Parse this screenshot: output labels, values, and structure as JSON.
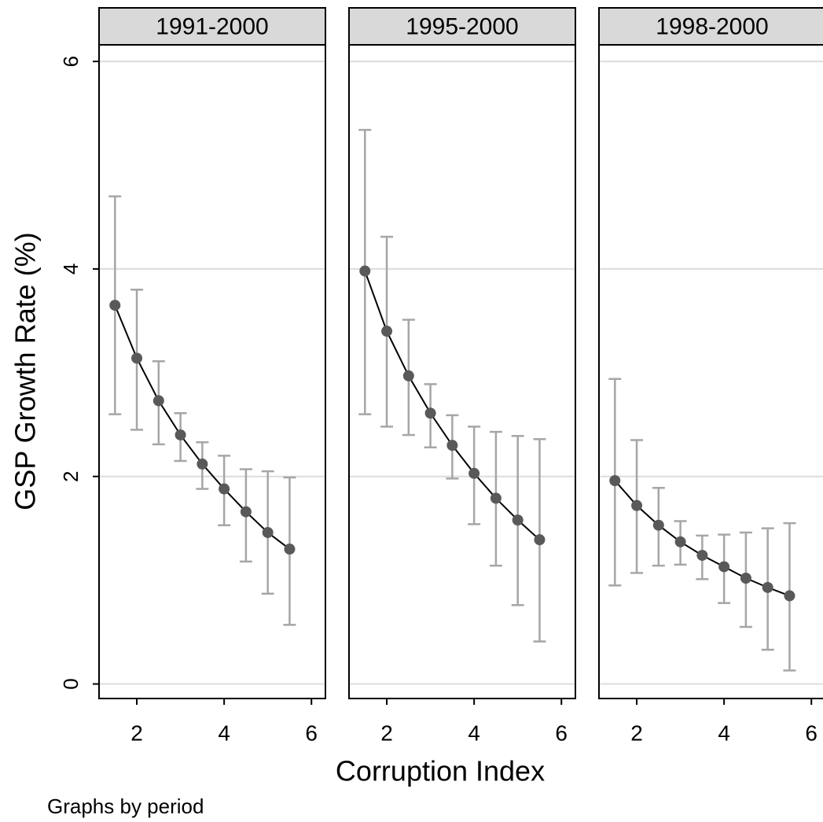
{
  "chart_data": [
    {
      "type": "line",
      "title": "1991-2000",
      "ylabel": "GSP Growth Rate (%)",
      "x": [
        1.5,
        2,
        2.5,
        3,
        3.5,
        4,
        4.5,
        5,
        5.5
      ],
      "values": [
        3.65,
        3.14,
        2.73,
        2.4,
        2.12,
        1.88,
        1.66,
        1.46,
        1.3
      ],
      "lower": [
        2.6,
        2.45,
        2.31,
        2.15,
        1.88,
        1.53,
        1.18,
        0.87,
        0.57
      ],
      "upper": [
        4.7,
        3.8,
        3.11,
        2.61,
        2.33,
        2.2,
        2.07,
        2.05,
        1.99
      ],
      "xlim": [
        1.135,
        6.32
      ],
      "xticks": [
        2,
        4,
        6
      ],
      "ylim": [
        -0.14,
        6.16
      ],
      "yticks": [
        0,
        2,
        4,
        6
      ],
      "grid": true,
      "line_color": "#000000",
      "marker_color": "#595959",
      "error_color": "#a6a6a6"
    },
    {
      "type": "line",
      "title": "1995-2000",
      "xlabel": "Corruption Index",
      "x": [
        1.5,
        2,
        2.5,
        3,
        3.5,
        4,
        4.5,
        5,
        5.5
      ],
      "values": [
        3.98,
        3.4,
        2.97,
        2.61,
        2.3,
        2.03,
        1.79,
        1.58,
        1.39
      ],
      "lower": [
        2.6,
        2.48,
        2.4,
        2.28,
        1.98,
        1.54,
        1.14,
        0.76,
        0.41
      ],
      "upper": [
        5.34,
        4.31,
        3.51,
        2.89,
        2.59,
        2.48,
        2.43,
        2.39,
        2.36
      ],
      "xlim": [
        1.135,
        6.32
      ],
      "xticks": [
        2,
        4,
        6
      ],
      "ylim": [
        -0.14,
        6.16
      ],
      "yticks": [
        0,
        2,
        4,
        6
      ],
      "grid": true,
      "line_color": "#000000",
      "marker_color": "#595959",
      "error_color": "#a6a6a6"
    },
    {
      "type": "line",
      "title": "1998-2000",
      "x": [
        1.5,
        2,
        2.5,
        3,
        3.5,
        4,
        4.5,
        5,
        5.5
      ],
      "values": [
        1.96,
        1.72,
        1.53,
        1.37,
        1.24,
        1.13,
        1.02,
        0.93,
        0.85
      ],
      "lower": [
        0.95,
        1.07,
        1.14,
        1.15,
        1.01,
        0.78,
        0.55,
        0.33,
        0.13
      ],
      "upper": [
        2.94,
        2.35,
        1.89,
        1.57,
        1.43,
        1.44,
        1.46,
        1.5,
        1.55
      ],
      "xlim": [
        1.135,
        6.32
      ],
      "xticks": [
        2,
        4,
        6
      ],
      "ylim": [
        -0.14,
        6.16
      ],
      "yticks": [
        0,
        2,
        4,
        6
      ],
      "grid": true,
      "line_color": "#000000",
      "marker_color": "#595959",
      "error_color": "#a6a6a6"
    }
  ],
  "note": "Graphs by period"
}
